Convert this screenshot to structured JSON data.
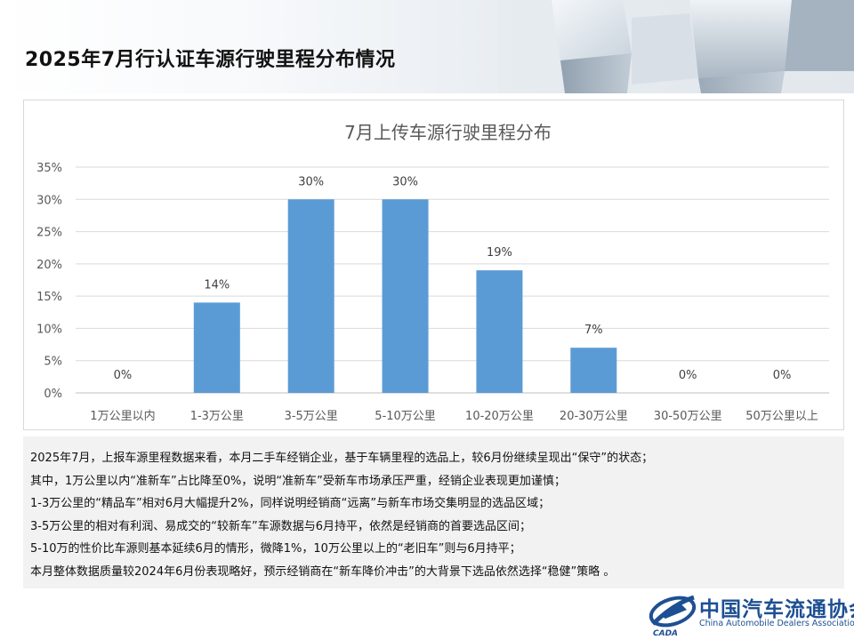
{
  "header": {
    "title": "2025年7月行认证车源行驶里程分布情况"
  },
  "chart_data": {
    "type": "bar",
    "title": "7月上传车源行驶里程分布",
    "categories": [
      "1万公里以内",
      "1-3万公里",
      "3-5万公里",
      "5-10万公里",
      "10-20万公里",
      "20-30万公里",
      "30-50万公里",
      "50万公里以上"
    ],
    "values": [
      0,
      14,
      30,
      30,
      19,
      7,
      0,
      0
    ],
    "value_labels": [
      "0%",
      "14%",
      "30%",
      "30%",
      "19%",
      "7%",
      "0%",
      "0%"
    ],
    "y_ticks": [
      "0%",
      "5%",
      "10%",
      "15%",
      "20%",
      "25%",
      "30%",
      "35%"
    ],
    "ylim": [
      0,
      35
    ],
    "grid": true,
    "bar_color": "#5b9bd5"
  },
  "notes": [
    "2025年7月，上报车源里程数据来看，本月二手车经销企业，基于车辆里程的选品上，较6月份继续呈现出“保守”的状态；",
    "其中，1万公里以内“准新车”占比降至0%，说明“准新车”受新车市场承压严重，经销企业表现更加谨慎；",
    "1-3万公里的“精品车”相对6月大幅提升2%，同样说明经销商“远离”与新车市场交集明显的选品区域；",
    "3-5万公里的相对有利润、易成交的“较新车”车源数据与6月持平，依然是经销商的首要选品区间；",
    "5-10万的性价比车源则基本延续6月的情形，微降1%，10万公里以上的“老旧车”则与6月持平；",
    "本月整体数据质量较2024年6月份表现略好，预示经销商在“新车降价冲击”的大背景下选品依然选择“稳健”策略 。"
  ],
  "logo": {
    "name_cn": "中国汽车流通协会",
    "name_en": "China Automobile Dealers Association",
    "mark_text": "CADA"
  }
}
